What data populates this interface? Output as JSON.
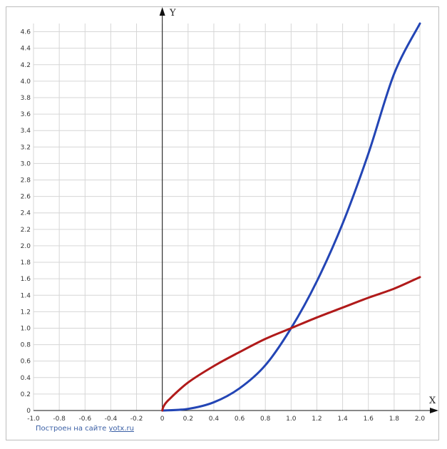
{
  "chart_data": {
    "type": "line",
    "title": "",
    "xlabel": "X",
    "ylabel": "Y",
    "xlim": [
      -1.0,
      2.0
    ],
    "ylim": [
      0,
      4.7
    ],
    "grid": true,
    "x_ticks": [
      "-1.0",
      "-0.8",
      "-0.6",
      "-0.4",
      "-0.2",
      "0",
      "0.2",
      "0.4",
      "0.6",
      "0.8",
      "1.0",
      "1.2",
      "1.4",
      "1.6",
      "1.8",
      "2.0"
    ],
    "y_ticks": [
      "0",
      "0.2",
      "0.4",
      "0.6",
      "0.8",
      "1.0",
      "1.2",
      "1.4",
      "1.6",
      "1.8",
      "2.0",
      "2.2",
      "2.4",
      "2.6",
      "2.8",
      "3.0",
      "3.2",
      "3.4",
      "3.6",
      "3.8",
      "4.0",
      "4.2",
      "4.4",
      "4.6"
    ],
    "series": [
      {
        "color": "#2345b5",
        "x": [
          0,
          0.2,
          0.4,
          0.6,
          0.8,
          1.0,
          1.2,
          1.4,
          1.6,
          1.8,
          2.0
        ],
        "y": [
          0,
          0.02,
          0.1,
          0.27,
          0.55,
          1.0,
          1.57,
          2.27,
          3.12,
          4.09,
          4.7
        ]
      },
      {
        "color": "#b01a1a",
        "x": [
          0,
          0.01,
          0.05,
          0.2,
          0.4,
          0.6,
          0.8,
          1.0,
          1.2,
          1.4,
          1.6,
          1.8,
          2.0
        ],
        "y": [
          0,
          0.05,
          0.13,
          0.34,
          0.54,
          0.71,
          0.87,
          1.0,
          1.13,
          1.25,
          1.37,
          1.48,
          1.62
        ]
      }
    ]
  },
  "credit": {
    "text": "Построен на сайте",
    "link": "yotx.ru"
  }
}
